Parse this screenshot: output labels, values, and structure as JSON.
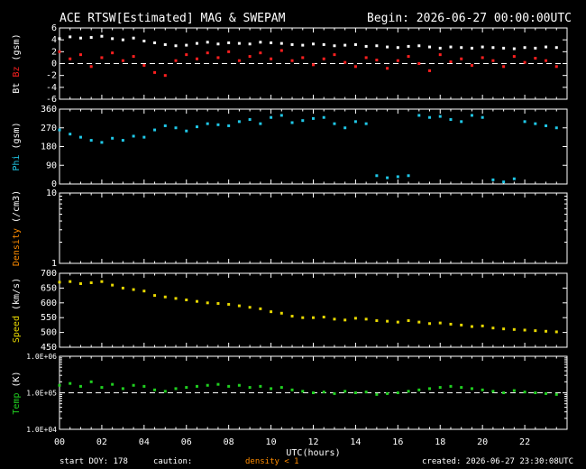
{
  "header": {
    "title": "ACE RTSW[Estimated] MAG & SWEPAM",
    "begin": "Begin: 2026-06-27 00:00:00UTC"
  },
  "footer": {
    "start_doy": "start DOY: 178",
    "caution": "caution:",
    "density_note": "density < 1",
    "created": "created: 2026-06-27 23:30:08UTC"
  },
  "colors": {
    "bt": "#ffffff",
    "bz": "#ff2020",
    "phi": "#20c8e8",
    "density": "#ff8c00",
    "speed": "#e8d800",
    "temp": "#20d020",
    "frame": "#ffffff",
    "background": "#000000"
  },
  "chart_data": [
    {
      "type": "scatter",
      "panel": "mag",
      "ylabel_parts": [
        "Bt",
        "Bz",
        "(gsm)"
      ],
      "ylim": [
        -6,
        6
      ],
      "yticks": [
        "6",
        "4",
        "2",
        "0",
        "-2",
        "-4",
        "-6"
      ],
      "reference_line": 0,
      "series": [
        {
          "name": "Bt",
          "color": "#ffffff",
          "x": [
            0,
            0.5,
            1,
            1.5,
            2,
            2.5,
            3,
            3.5,
            4,
            4.5,
            5,
            5.5,
            6,
            6.5,
            7,
            7.5,
            8,
            8.5,
            9,
            9.5,
            10,
            10.5,
            11,
            11.5,
            12,
            12.5,
            13,
            13.5,
            14,
            14.5,
            15,
            15.5,
            16,
            16.5,
            17,
            17.5,
            18,
            18.5,
            19,
            19.5,
            20,
            20.5,
            21,
            21.5,
            22,
            22.5,
            23,
            23.5
          ],
          "y": [
            4.2,
            4.5,
            4.3,
            4.4,
            4.6,
            4.2,
            4.0,
            4.3,
            3.8,
            3.5,
            3.2,
            3.0,
            3.1,
            3.4,
            3.6,
            3.3,
            3.5,
            3.4,
            3.3,
            3.6,
            3.5,
            3.4,
            3.2,
            3.1,
            3.3,
            3.2,
            3.0,
            3.1,
            3.2,
            2.9,
            3.0,
            2.8,
            2.7,
            2.9,
            3.0,
            2.8,
            2.6,
            2.8,
            2.7,
            2.6,
            2.8,
            2.7,
            2.6,
            2.5,
            2.7,
            2.6,
            2.8,
            2.7
          ]
        },
        {
          "name": "Bz",
          "color": "#ff2020",
          "x": [
            0,
            0.5,
            1,
            1.5,
            2,
            2.5,
            3,
            3.5,
            4,
            4.5,
            5,
            5.5,
            6,
            6.5,
            7,
            7.5,
            8,
            8.5,
            9,
            9.5,
            10,
            10.5,
            11,
            11.5,
            12,
            12.5,
            13,
            13.5,
            14,
            14.5,
            15,
            15.5,
            16,
            16.5,
            17,
            17.5,
            18,
            18.5,
            19,
            19.5,
            20,
            20.5,
            21,
            21.5,
            22,
            22.5,
            23,
            23.5
          ],
          "y": [
            2.0,
            0.8,
            1.5,
            -0.5,
            1.0,
            1.8,
            0.5,
            1.2,
            -0.3,
            -1.5,
            -2.0,
            0.5,
            1.5,
            0.8,
            1.8,
            1.0,
            2.0,
            0.5,
            1.2,
            1.8,
            0.8,
            2.2,
            0.5,
            1.0,
            -0.2,
            0.8,
            1.5,
            0.2,
            -0.5,
            1.0,
            0.6,
            -0.8,
            0.5,
            1.2,
            0.0,
            -1.2,
            1.5,
            0.3,
            0.8,
            -0.3,
            1.0,
            0.5,
            -0.5,
            1.2,
            0.2,
            0.9,
            0.5,
            -0.5
          ]
        }
      ]
    },
    {
      "type": "scatter",
      "panel": "phi",
      "ylabel": "Phi (gsm)",
      "ylim": [
        0,
        360
      ],
      "yticks": [
        "360",
        "270",
        "180",
        "90",
        "0"
      ],
      "series": [
        {
          "name": "Phi",
          "color": "#20c8e8",
          "x": [
            0,
            0.5,
            1,
            1.5,
            2,
            2.5,
            3,
            3.5,
            4,
            4.5,
            5,
            5.5,
            6,
            6.5,
            7,
            7.5,
            8,
            8.5,
            9,
            9.5,
            10,
            10.5,
            11,
            11.5,
            12,
            12.5,
            13,
            13.5,
            14,
            14.5,
            15,
            15.5,
            16,
            16.5,
            17,
            17.5,
            18,
            18.5,
            19,
            19.5,
            20,
            20.5,
            21,
            21.5,
            22,
            22.5,
            23,
            23.5
          ],
          "y": [
            260,
            240,
            225,
            210,
            200,
            220,
            210,
            230,
            225,
            260,
            280,
            270,
            255,
            275,
            290,
            285,
            280,
            300,
            310,
            290,
            320,
            330,
            295,
            305,
            315,
            320,
            290,
            270,
            300,
            290,
            40,
            30,
            35,
            40,
            330,
            320,
            325,
            310,
            300,
            330,
            320,
            20,
            10,
            25,
            300,
            290,
            280,
            270
          ]
        }
      ]
    },
    {
      "type": "scatter",
      "panel": "density",
      "ylabel": "Density (/cm3)",
      "ylim": [
        1,
        10
      ],
      "yticks": [
        "10",
        "1"
      ],
      "scale": "log",
      "series": []
    },
    {
      "type": "scatter",
      "panel": "speed",
      "ylabel": "Speed (km/s)",
      "ylim": [
        450,
        700
      ],
      "yticks": [
        "700",
        "650",
        "600",
        "550",
        "500",
        "450"
      ],
      "series": [
        {
          "name": "Speed",
          "color": "#e8d800",
          "x": [
            0,
            0.5,
            1,
            1.5,
            2,
            2.5,
            3,
            3.5,
            4,
            4.5,
            5,
            5.5,
            6,
            6.5,
            7,
            7.5,
            8,
            8.5,
            9,
            9.5,
            10,
            10.5,
            11,
            11.5,
            12,
            12.5,
            13,
            13.5,
            14,
            14.5,
            15,
            15.5,
            16,
            16.5,
            17,
            17.5,
            18,
            18.5,
            19,
            19.5,
            20,
            20.5,
            21,
            21.5,
            22,
            22.5,
            23,
            23.5
          ],
          "y": [
            670,
            672,
            665,
            668,
            672,
            660,
            650,
            645,
            640,
            625,
            620,
            615,
            610,
            605,
            600,
            598,
            595,
            590,
            585,
            580,
            570,
            565,
            555,
            550,
            550,
            552,
            545,
            542,
            548,
            545,
            540,
            538,
            535,
            540,
            535,
            530,
            532,
            528,
            525,
            520,
            522,
            515,
            512,
            510,
            508,
            506,
            504,
            502
          ]
        }
      ]
    },
    {
      "type": "scatter",
      "panel": "temp",
      "ylabel": "Temp (K)",
      "ylim": [
        10000,
        1000000
      ],
      "yticks": [
        "1.0E+06",
        "1.0E+05",
        "1.0E+04"
      ],
      "scale": "log",
      "reference_line": 100000,
      "series": [
        {
          "name": "Temp",
          "color": "#20d020",
          "x": [
            0,
            0.5,
            1,
            1.5,
            2,
            2.5,
            3,
            3.5,
            4,
            4.5,
            5,
            5.5,
            6,
            6.5,
            7,
            7.5,
            8,
            8.5,
            9,
            9.5,
            10,
            10.5,
            11,
            11.5,
            12,
            12.5,
            13,
            13.5,
            14,
            14.5,
            15,
            15.5,
            16,
            16.5,
            17,
            17.5,
            18,
            18.5,
            19,
            19.5,
            20,
            20.5,
            21,
            21.5,
            22,
            22.5,
            23,
            23.5
          ],
          "y": [
            160000,
            180000,
            150000,
            200000,
            140000,
            170000,
            130000,
            160000,
            150000,
            120000,
            110000,
            130000,
            140000,
            150000,
            160000,
            170000,
            150000,
            160000,
            140000,
            150000,
            130000,
            140000,
            120000,
            110000,
            100000,
            105000,
            95000,
            110000,
            100000,
            105000,
            90000,
            95000,
            100000,
            110000,
            120000,
            130000,
            140000,
            150000,
            140000,
            130000,
            120000,
            110000,
            100000,
            115000,
            105000,
            100000,
            95000,
            90000
          ]
        }
      ]
    }
  ],
  "xaxis": {
    "xlim": [
      0,
      24
    ],
    "tick_labels": [
      "00",
      "02",
      "04",
      "06",
      "08",
      "10",
      "12",
      "14",
      "16",
      "18",
      "20",
      "22"
    ],
    "xlabel": "UTC(hours)"
  }
}
